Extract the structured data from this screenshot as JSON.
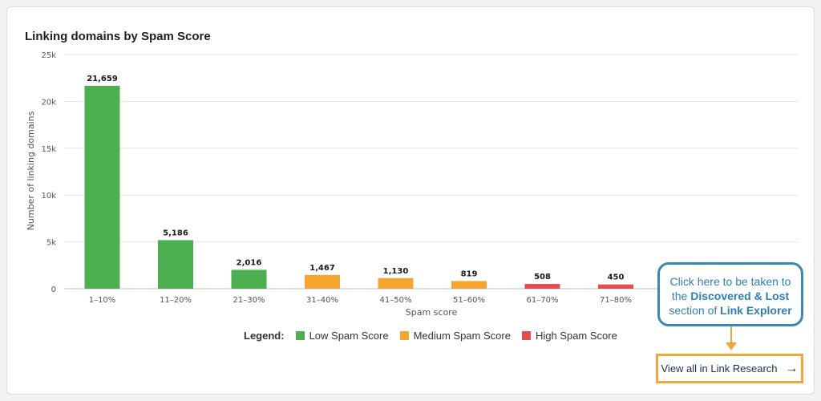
{
  "title": "Linking domains by Spam Score",
  "chart_data": {
    "type": "bar",
    "title": "Linking domains by Spam Score",
    "xlabel": "Spam score",
    "ylabel": "Number of linking domains",
    "ylim": [
      0,
      25000
    ],
    "yticks": [
      "0",
      "5k",
      "10k",
      "15k",
      "20k",
      "25k"
    ],
    "categories": [
      "1–10%",
      "11–20%",
      "21–30%",
      "31–40%",
      "41–50%",
      "51–60%",
      "61–70%",
      "71–80%"
    ],
    "values": [
      21659,
      5186,
      2016,
      1467,
      1130,
      819,
      508,
      450
    ],
    "value_labels": [
      "21,659",
      "5,186",
      "2,016",
      "1,467",
      "1,130",
      "819",
      "508",
      "450"
    ],
    "bar_groups": [
      "low",
      "low",
      "low",
      "medium",
      "medium",
      "medium",
      "high",
      "high"
    ],
    "grid": true
  },
  "legend": {
    "title": "Legend:",
    "items": [
      {
        "key": "low",
        "label": "Low Spam Score",
        "color": "#4caf50"
      },
      {
        "key": "medium",
        "label": "Medium Spam Score",
        "color": "#f7a531"
      },
      {
        "key": "high",
        "label": "High Spam Score",
        "color": "#e74c4c"
      }
    ]
  },
  "callout": {
    "line1": "Click here to be taken to",
    "line2_pre": "the ",
    "line2_bold": "Discovered & Lost",
    "line3_pre": "section of ",
    "line3_bold": "Link Explorer"
  },
  "view_all": {
    "label": "View all in Link Research",
    "icon": "arrow-right-icon"
  }
}
